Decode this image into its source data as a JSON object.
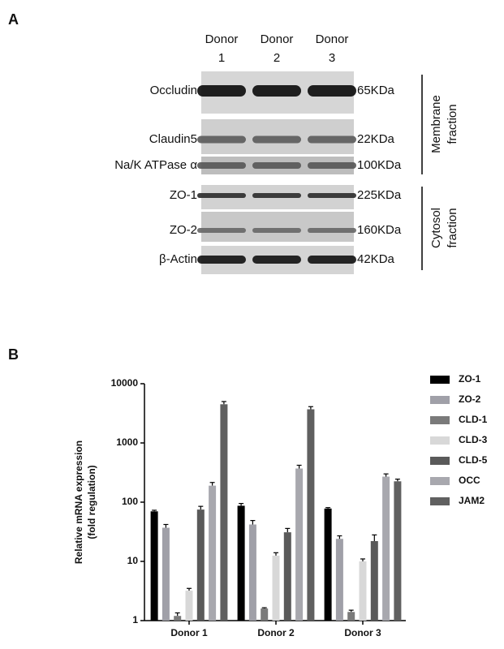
{
  "panels": [
    "A",
    "B"
  ],
  "blot": {
    "lanes": [
      [
        "Donor",
        "1"
      ],
      [
        "Donor",
        "2"
      ],
      [
        "Donor",
        "3"
      ]
    ],
    "rows": [
      {
        "label": "Occludin",
        "size": "65KDa"
      },
      {
        "label": "Claudin5",
        "size": "22KDa"
      },
      {
        "label": "Na/K ATPase α",
        "size": "100KDa"
      },
      {
        "label": "ZO-1",
        "size": "225KDa"
      },
      {
        "label": "ZO-2",
        "size": "160KDa"
      },
      {
        "label": "β-Actin",
        "size": "42KDa"
      }
    ],
    "fractions": [
      [
        "Membrane",
        "fraction"
      ],
      [
        "Cytosol",
        "fraction"
      ]
    ]
  },
  "chart_data": {
    "type": "bar",
    "ylabel": [
      "Relative mRNA expression",
      "(fold regulation)"
    ],
    "categories": [
      "Donor 1",
      "Donor 2",
      "Donor 3"
    ],
    "log_scale": true,
    "ylim": [
      1,
      10000
    ],
    "yticks": [
      1,
      10,
      100,
      1000,
      10000
    ],
    "series": [
      {
        "name": "ZO-1",
        "color": "#000000",
        "values": [
          70,
          87,
          78
        ],
        "errors": [
          3,
          8,
          3
        ]
      },
      {
        "name": "ZO-2",
        "color": "#a0a0a8",
        "values": [
          37,
          42,
          24
        ],
        "errors": [
          5,
          7,
          3
        ]
      },
      {
        "name": "CLD-1",
        "color": "#7a7a7a",
        "values": [
          1.2,
          1.6,
          1.4
        ],
        "errors": [
          0.15,
          0.05,
          0.1
        ]
      },
      {
        "name": "CLD-3",
        "color": "#d8d8d8",
        "values": [
          3.2,
          12.5,
          10
        ],
        "errors": [
          0.3,
          1.5,
          1
        ]
      },
      {
        "name": "CLD-5",
        "color": "#5a5a5a",
        "values": [
          75,
          31,
          22
        ],
        "errors": [
          10,
          5,
          6
        ]
      },
      {
        "name": "OCC",
        "color": "#a8a8ae",
        "values": [
          190,
          370,
          270
        ],
        "errors": [
          25,
          50,
          30
        ]
      },
      {
        "name": "JAM2",
        "color": "#606060",
        "values": [
          4500,
          3700,
          225
        ],
        "errors": [
          500,
          400,
          20
        ]
      }
    ]
  }
}
